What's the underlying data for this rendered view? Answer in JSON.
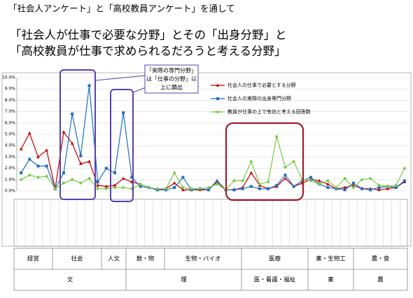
{
  "header": {
    "line1": "「社会人アンケート」と「高校教員アンケート」を通して",
    "line2": "「社会人が仕事で必要な分野」とその「出身分野」と",
    "line3": "「高校教員が仕事で求められるだろうと考える分野」"
  },
  "annotation": {
    "lines": [
      "「実際の専門分野」",
      "は「仕事の分野」以",
      "上に顕出"
    ]
  },
  "field_table": {
    "row1": [
      "経営",
      "社会",
      "人文",
      "数・物",
      "生物・バイオ",
      "医療",
      "薬・生物工",
      "農・食"
    ],
    "row2": [
      "文",
      "理",
      "医・看護・福祉",
      "薬",
      "農"
    ]
  },
  "chart_data": {
    "type": "line",
    "categories": [
      null,
      null,
      null,
      null,
      null,
      null,
      null,
      null,
      null,
      null,
      null,
      null,
      null,
      null,
      null,
      null,
      null,
      null,
      null,
      null,
      null,
      null,
      null,
      null,
      null,
      null,
      null,
      null,
      null,
      null,
      null,
      null,
      null,
      null,
      null,
      null,
      null,
      null,
      null,
      null,
      null,
      null,
      null,
      null,
      null,
      null
    ],
    "ylim": [
      0,
      10
    ],
    "yticks": [
      {
        "value": 0,
        "label": "0.0%"
      },
      {
        "value": 1,
        "label": "1.0%"
      },
      {
        "value": 2,
        "label": "2.0%"
      },
      {
        "value": 3,
        "label": "3.0%"
      },
      {
        "value": 4,
        "label": "4.0%"
      },
      {
        "value": 5,
        "label": "5.0%"
      },
      {
        "value": 6,
        "label": "6.0%"
      },
      {
        "value": 7,
        "label": "7.0%"
      },
      {
        "value": 8,
        "label": "8.0%"
      },
      {
        "value": 9,
        "label": "9.0%"
      },
      {
        "value": 10,
        "label": "10.0%"
      }
    ],
    "grid": true,
    "series": [
      {
        "name": "社会人の仕事で必要とする分野",
        "color": "#c00000",
        "marker": "triangle",
        "values": [
          3.7,
          5.1,
          3.0,
          3.6,
          0.2,
          5.2,
          4.2,
          2.4,
          2.6,
          0.5,
          0.4,
          0.5,
          1.1,
          0.8,
          0.6,
          0.3,
          0.1,
          0.2,
          0.7,
          0.1,
          0.1,
          0.1,
          0.1,
          0.9,
          0.1,
          0.1,
          0.3,
          1.6,
          0.5,
          0.2,
          0.4,
          1.1,
          0.4,
          0.7,
          1.0,
          0.9,
          0.6,
          0.2,
          0.3,
          0.5,
          0.2,
          0.2,
          0.1,
          0.2,
          0.3,
          0.8
        ]
      },
      {
        "name": "社会人の実際の出身専門分野",
        "color": "#1f6fbf",
        "marker": "square",
        "values": [
          1.6,
          2.8,
          2.2,
          2.2,
          0.2,
          1.6,
          6.8,
          3.1,
          9.3,
          0.8,
          2.0,
          1.6,
          6.9,
          1.2,
          0.4,
          0.3,
          0.1,
          0.1,
          0.3,
          1.2,
          0.1,
          0.2,
          0.1,
          0.8,
          0.1,
          0.1,
          0.2,
          0.4,
          0.2,
          0.2,
          0.5,
          1.4,
          0.4,
          0.9,
          1.2,
          0.6,
          0.3,
          0.2,
          0.1,
          0.7,
          0.2,
          0.1,
          0.3,
          0.4,
          0.3,
          0.9
        ]
      },
      {
        "name": "教員が仕事の上で有効と考える回答数",
        "color": "#7ac943",
        "marker": "diamond",
        "values": [
          1.0,
          1.4,
          1.2,
          1.3,
          0.2,
          0.7,
          1.0,
          0.7,
          1.1,
          0.2,
          0.2,
          0.3,
          0.3,
          0.2,
          0.6,
          0.3,
          0.2,
          0.2,
          1.6,
          0.3,
          0.2,
          0.2,
          0.3,
          0.6,
          0.1,
          0.9,
          0.9,
          2.6,
          0.6,
          0.8,
          4.8,
          2.1,
          2.6,
          1.0,
          0.9,
          0.6,
          0.9,
          0.3,
          1.1,
          0.3,
          1.0,
          1.1,
          0.5,
          0.4,
          0.5,
          2.0
        ]
      }
    ]
  }
}
